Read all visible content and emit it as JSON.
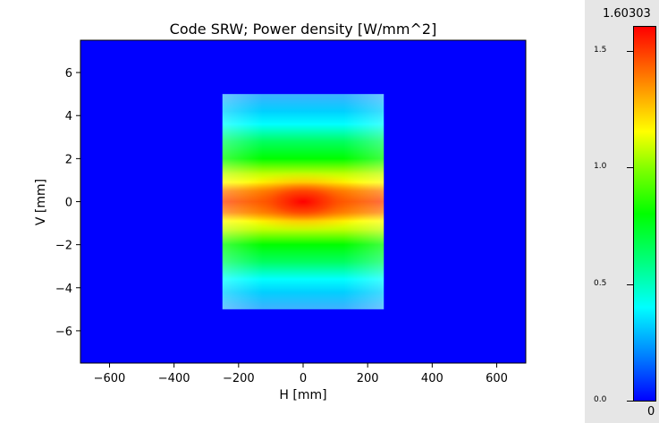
{
  "chart_data": {
    "type": "heatmap",
    "title": "Code SRW; Power density [W/mm^2]",
    "xlabel": "H [mm]",
    "ylabel": "V [mm]",
    "xlim": [
      -690,
      690
    ],
    "ylim": [
      -7.5,
      7.5
    ],
    "x_ticks": [
      -600,
      -400,
      -200,
      0,
      200,
      400,
      600
    ],
    "x_tick_labels": [
      "−600",
      "−400",
      "−200",
      "0",
      "200",
      "400",
      "600"
    ],
    "y_ticks": [
      6,
      4,
      2,
      0,
      -2,
      -4,
      -6
    ],
    "y_tick_labels": [
      "6",
      "4",
      "2",
      "0",
      "−2",
      "−4",
      "−6"
    ],
    "data_region": {
      "x": [
        -250,
        250
      ],
      "y": [
        -5,
        5
      ]
    },
    "z_min": 0,
    "z_max": 1.60303,
    "colormap": "jet",
    "background_value_color": "#0000ff",
    "colorbar": {
      "max_label": "1.60303",
      "min_label": "0",
      "ticks": [
        1.5,
        1.0,
        0.5,
        0.0
      ],
      "tick_labels": [
        "1.5",
        "1.0",
        "0.5",
        "0.0"
      ]
    }
  }
}
